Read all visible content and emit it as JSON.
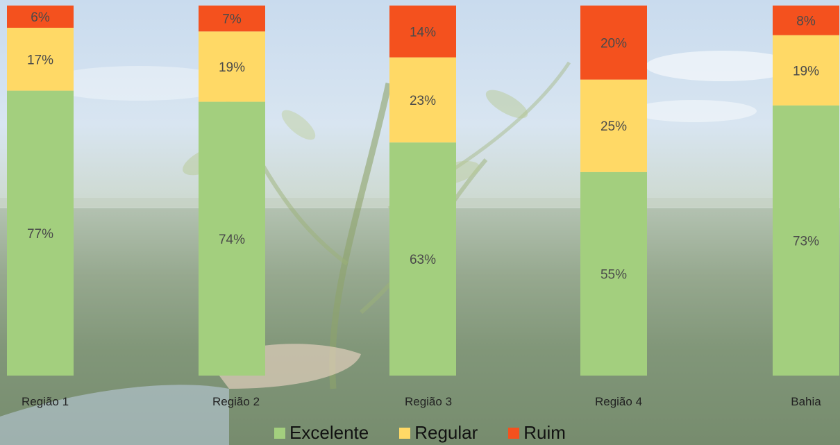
{
  "chart_data": {
    "type": "bar",
    "stacked": true,
    "normalized_to_100": true,
    "categories": [
      "Região 1",
      "Região 2",
      "Região 3",
      "Região 4",
      "Bahia"
    ],
    "series": [
      {
        "name": "Excelente",
        "color": "#a3cf7e",
        "values": [
          77,
          74,
          63,
          55,
          73
        ],
        "labels": [
          "77%",
          "74%",
          "63%",
          "55%",
          "73%"
        ]
      },
      {
        "name": "Regular",
        "color": "#ffd966",
        "values": [
          17,
          19,
          23,
          25,
          19
        ],
        "labels": [
          "17%",
          "19%",
          "23%",
          "25%",
          "19%"
        ]
      },
      {
        "name": "Ruim",
        "color": "#f4511e",
        "values": [
          6,
          7,
          14,
          20,
          8
        ],
        "labels": [
          "6%",
          "7%",
          "14%",
          "20%",
          "8%"
        ]
      }
    ],
    "ylim": [
      0,
      100
    ],
    "grid": false,
    "legend_position": "bottom",
    "data_labels": true,
    "background": "photo"
  }
}
